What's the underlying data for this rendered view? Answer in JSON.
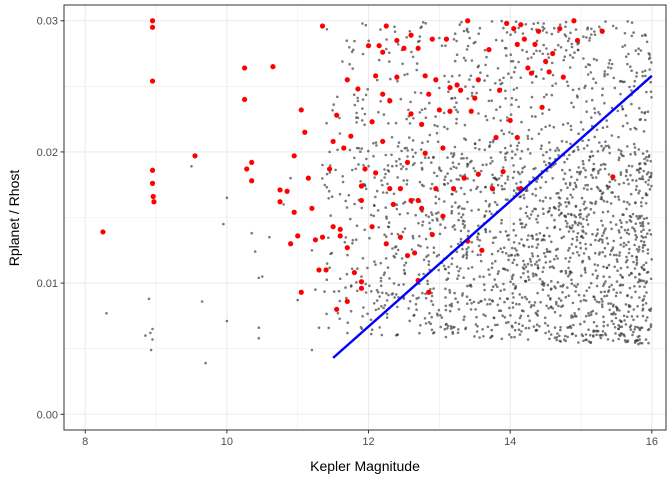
{
  "chart_data": {
    "type": "scatter",
    "title": "",
    "xlabel": "Kepler Magnitude",
    "ylabel": "Rplanet / Rhost",
    "xlim": [
      7.7,
      16.2
    ],
    "ylim": [
      -0.0012,
      0.0312
    ],
    "x_ticks": [
      8,
      10,
      12,
      14,
      16
    ],
    "x_tick_labels": [
      "8",
      "10",
      "12",
      "14",
      "16"
    ],
    "y_ticks": [
      0.0,
      0.01,
      0.02,
      0.03
    ],
    "y_tick_labels": [
      "0.00",
      "0.01",
      "0.02",
      "0.03"
    ],
    "grid": true,
    "legend": "none",
    "colors": {
      "highlighted": "#ff0000",
      "background_points": "#333333",
      "trend_line": "#0000ff",
      "panel_border": "#333333",
      "grid": "#ebebeb"
    },
    "series": [
      {
        "type": "scatter",
        "points": [
          [
            8.25,
            0.0139
          ],
          [
            8.95,
            0.03
          ],
          [
            8.95,
            0.0295
          ],
          [
            8.95,
            0.0254
          ],
          [
            8.95,
            0.0186
          ],
          [
            8.95,
            0.0176
          ],
          [
            8.96,
            0.0166
          ],
          [
            8.97,
            0.0162
          ],
          [
            9.55,
            0.0197
          ],
          [
            10.25,
            0.0264
          ],
          [
            10.25,
            0.024
          ],
          [
            10.35,
            0.0192
          ],
          [
            10.35,
            0.0178
          ],
          [
            10.28,
            0.0187
          ],
          [
            10.65,
            0.0265
          ],
          [
            10.75,
            0.0171
          ],
          [
            10.75,
            0.0162
          ],
          [
            10.85,
            0.017
          ],
          [
            10.9,
            0.013
          ],
          [
            10.95,
            0.0197
          ],
          [
            10.95,
            0.0154
          ],
          [
            11.0,
            0.0136
          ],
          [
            11.05,
            0.0232
          ],
          [
            11.1,
            0.0215
          ],
          [
            11.05,
            0.0093
          ],
          [
            11.15,
            0.018
          ],
          [
            11.2,
            0.0157
          ],
          [
            11.25,
            0.0133
          ],
          [
            11.3,
            0.011
          ],
          [
            11.35,
            0.0135
          ],
          [
            11.4,
            0.011
          ],
          [
            11.45,
            0.0187
          ],
          [
            11.5,
            0.0143
          ],
          [
            11.5,
            0.0208
          ],
          [
            11.35,
            0.0296
          ],
          [
            11.55,
            0.008
          ],
          [
            11.6,
            0.0141
          ],
          [
            11.6,
            0.0136
          ],
          [
            11.65,
            0.0203
          ],
          [
            11.55,
            0.0228
          ],
          [
            11.7,
            0.0086
          ],
          [
            11.7,
            0.0127
          ],
          [
            11.75,
            0.0212
          ],
          [
            11.7,
            0.0255
          ],
          [
            11.8,
            0.0108
          ],
          [
            11.85,
            0.0248
          ],
          [
            11.9,
            0.0174
          ],
          [
            11.9,
            0.0163
          ],
          [
            11.9,
            0.0096
          ],
          [
            11.9,
            0.0101
          ],
          [
            11.95,
            0.0187
          ],
          [
            12.0,
            0.0281
          ],
          [
            12.05,
            0.0143
          ],
          [
            12.05,
            0.0223
          ],
          [
            12.1,
            0.0258
          ],
          [
            12.1,
            0.0184
          ],
          [
            12.15,
            0.0281
          ],
          [
            12.2,
            0.0276
          ],
          [
            12.2,
            0.0208
          ],
          [
            12.2,
            0.0244
          ],
          [
            12.25,
            0.0296
          ],
          [
            12.25,
            0.013
          ],
          [
            12.3,
            0.0172
          ],
          [
            12.3,
            0.0239
          ],
          [
            12.35,
            0.016
          ],
          [
            12.4,
            0.0285
          ],
          [
            12.4,
            0.0257
          ],
          [
            12.45,
            0.0172
          ],
          [
            12.45,
            0.0135
          ],
          [
            12.5,
            0.0279
          ],
          [
            12.55,
            0.0121
          ],
          [
            12.55,
            0.0192
          ],
          [
            12.6,
            0.0289
          ],
          [
            12.6,
            0.0229
          ],
          [
            12.6,
            0.0163
          ],
          [
            12.65,
            0.0123
          ],
          [
            12.7,
            0.0279
          ],
          [
            12.7,
            0.0163
          ],
          [
            12.7,
            0.0102
          ],
          [
            12.75,
            0.0221
          ],
          [
            12.75,
            0.0157
          ],
          [
            12.8,
            0.0199
          ],
          [
            12.8,
            0.0258
          ],
          [
            12.85,
            0.0244
          ],
          [
            12.85,
            0.0093
          ],
          [
            12.9,
            0.0137
          ],
          [
            12.9,
            0.0286
          ],
          [
            12.95,
            0.0172
          ],
          [
            12.95,
            0.0255
          ],
          [
            13.0,
            0.0232
          ],
          [
            13.05,
            0.0203
          ],
          [
            13.05,
            0.0151
          ],
          [
            13.1,
            0.0286
          ],
          [
            13.15,
            0.0231
          ],
          [
            13.15,
            0.0249
          ],
          [
            13.2,
            0.0172
          ],
          [
            13.25,
            0.0251
          ],
          [
            13.3,
            0.0247
          ],
          [
            13.35,
            0.018
          ],
          [
            13.4,
            0.03
          ],
          [
            13.4,
            0.0132
          ],
          [
            13.45,
            0.0231
          ],
          [
            13.5,
            0.0241
          ],
          [
            13.55,
            0.0183
          ],
          [
            13.55,
            0.0255
          ],
          [
            13.6,
            0.0125
          ],
          [
            13.7,
            0.0278
          ],
          [
            13.75,
            0.0172
          ],
          [
            13.8,
            0.0211
          ],
          [
            13.85,
            0.0247
          ],
          [
            13.9,
            0.0185
          ],
          [
            13.95,
            0.0298
          ],
          [
            14.0,
            0.0224
          ],
          [
            14.05,
            0.0294
          ],
          [
            14.1,
            0.0282
          ],
          [
            14.1,
            0.0211
          ],
          [
            14.15,
            0.0297
          ],
          [
            14.15,
            0.0172
          ],
          [
            14.2,
            0.0286
          ],
          [
            14.25,
            0.0264
          ],
          [
            14.3,
            0.026
          ],
          [
            14.35,
            0.0282
          ],
          [
            14.4,
            0.0292
          ],
          [
            14.45,
            0.0234
          ],
          [
            14.5,
            0.0269
          ],
          [
            14.55,
            0.0261
          ],
          [
            14.6,
            0.0275
          ],
          [
            14.7,
            0.0294
          ],
          [
            14.75,
            0.0257
          ],
          [
            14.9,
            0.03
          ],
          [
            14.95,
            0.0285
          ],
          [
            15.3,
            0.0292
          ],
          [
            15.45,
            0.0181
          ]
        ]
      },
      {
        "type": "line",
        "x": [
          11.5,
          16.0
        ],
        "y": [
          0.0043,
          0.0258
        ]
      }
    ]
  }
}
